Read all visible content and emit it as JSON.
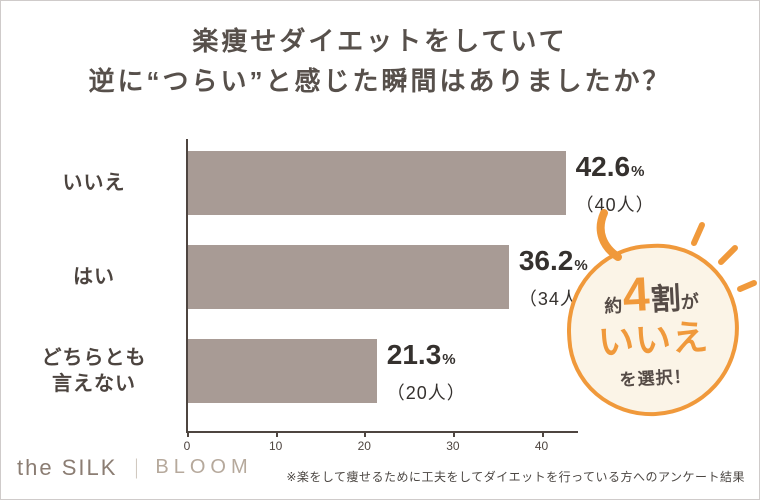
{
  "title": {
    "line1": "楽痩せダイエットをしていて",
    "line2": "逆に“つらい”と感じた瞬間はありましたか？"
  },
  "chart_data": {
    "type": "bar",
    "orientation": "horizontal",
    "title": "楽痩せダイエットをしていて逆に“つらい”と感じた瞬間はありましたか？",
    "categories": [
      [
        "いいえ"
      ],
      [
        "はい"
      ],
      [
        "どちらとも",
        "言えない"
      ]
    ],
    "values": [
      42.6,
      36.2,
      21.3
    ],
    "value_suffix": "%",
    "count_labels": [
      "（40人）",
      "（34人）",
      "（20人）"
    ],
    "x_ticks": [
      0,
      10,
      20,
      30,
      40
    ],
    "xlim": [
      0,
      44
    ],
    "grid": false,
    "legend": false,
    "bar_color": "#a89b95",
    "axis_color": "#4e4540"
  },
  "callout": {
    "pre": "約",
    "num": "4",
    "mid": "割",
    "post": "が",
    "line2": "いいえ",
    "line3": "を選択！",
    "accent_color": "#f0993b",
    "bg_color": "#fbf4e7",
    "text_color": "#554b46"
  },
  "footer": {
    "brand1": "the SILK",
    "sep": "｜",
    "brand2": "BLOOM",
    "note": "※楽をして痩せるために工夫をしてダイエットを行っている方へのアンケート結果"
  }
}
